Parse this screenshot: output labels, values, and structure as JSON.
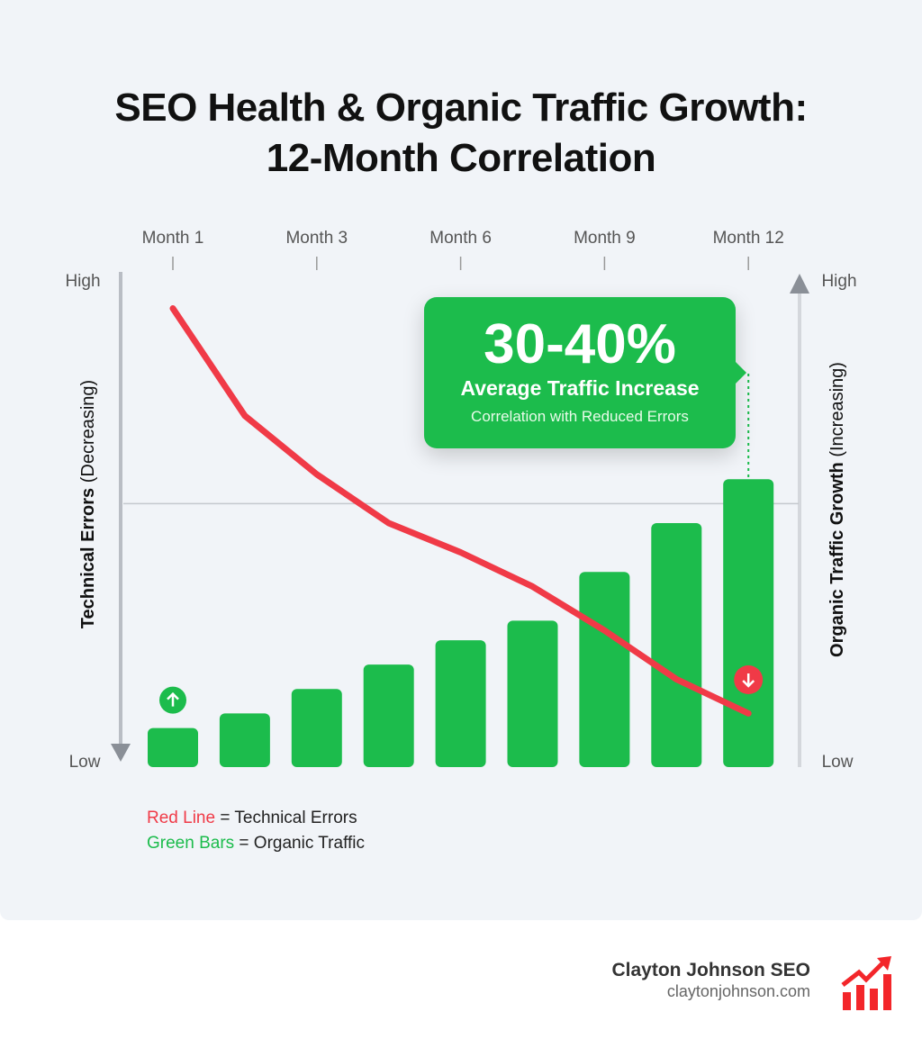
{
  "title_line1": "SEO Health & Organic Traffic Growth:",
  "title_line2": "12-Month Correlation",
  "chart_data": {
    "type": "bar+line",
    "x_tick_labels": [
      "Month 1",
      "Month 3",
      "Month 6",
      "Month 9",
      "Month 12"
    ],
    "left_axis": {
      "label_bold": "Technical Errors",
      "label_rest": "(Decreasing)",
      "high": "High",
      "low": "Low"
    },
    "right_axis": {
      "label_bold": "Organic Traffic Growth",
      "label_rest": "(Increasing)",
      "high": "High",
      "low": "Low"
    },
    "ylim": [
      0,
      100
    ],
    "series": [
      {
        "name": "Organic Traffic",
        "type": "bar",
        "color": "#1cbc4c",
        "values": [
          8,
          11,
          16,
          21,
          26,
          30,
          40,
          50,
          59
        ]
      },
      {
        "name": "Technical Errors",
        "type": "line",
        "color": "#f03a47",
        "values": [
          94,
          72,
          60,
          50,
          44,
          37,
          28,
          18,
          11
        ]
      }
    ],
    "reference_line": 54,
    "grid": false,
    "legend": [
      {
        "key": "Red Line",
        "text": " = Technical Errors",
        "color": "#f03a47"
      },
      {
        "key": "Green Bars",
        "text": " = Organic Traffic",
        "color": "#1cbc4c"
      }
    ],
    "annotation": {
      "value": "30-40%",
      "headline": "Average Traffic Increase",
      "sub": "Correlation with Reduced Errors"
    },
    "markers": {
      "start": "arrow-up-icon",
      "end": "arrow-down-icon"
    }
  },
  "footer": {
    "brand": "Clayton Johnson SEO",
    "url": "claytonjohnson.com",
    "logo": "bar-chart-trend-icon"
  }
}
